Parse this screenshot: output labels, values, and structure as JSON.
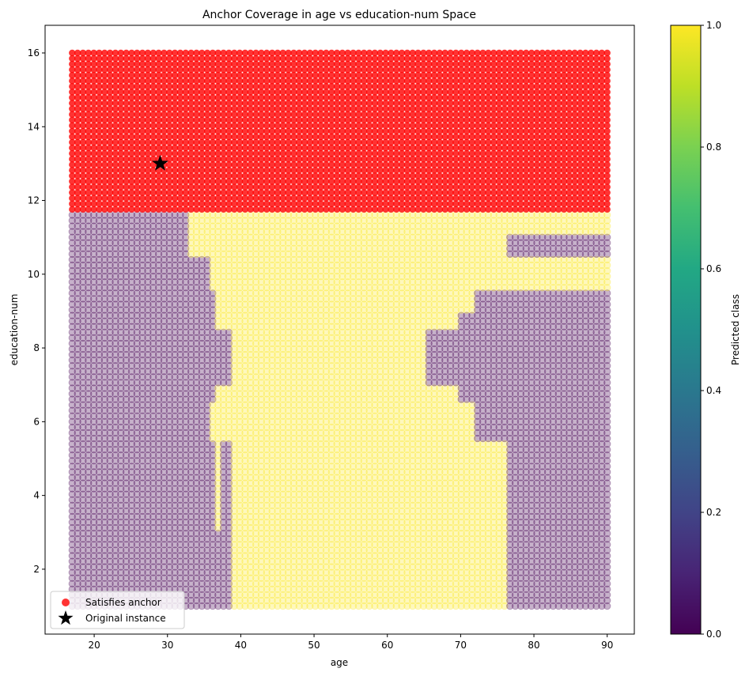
{
  "chart_data": {
    "type": "scatter",
    "title": "Anchor Coverage in age vs education-num Space",
    "xlabel": "age",
    "ylabel": "education-num",
    "xlim": [
      13.3,
      93.7
    ],
    "ylim": [
      0.24,
      16.75
    ],
    "xticks": [
      20,
      30,
      40,
      50,
      60,
      70,
      80,
      90
    ],
    "yticks": [
      2,
      4,
      6,
      8,
      10,
      12,
      14,
      16
    ],
    "grid": false,
    "grid_points": {
      "age_range": [
        17,
        90
      ],
      "education_range": [
        1,
        16
      ],
      "count_per_axis": 100
    },
    "predicted_class_0_regions": [
      {
        "age": [
          17,
          32.5
        ],
        "education": [
          1,
          11.7
        ]
      },
      {
        "age": [
          17,
          35.6
        ],
        "education": [
          1,
          10.5
        ]
      },
      {
        "age": [
          17,
          36.3
        ],
        "education": [
          6.5,
          9.6
        ]
      },
      {
        "age": [
          17,
          38.5
        ],
        "education": [
          7.0,
          8.55
        ]
      },
      {
        "age": [
          17,
          36.3
        ],
        "education": [
          1,
          5.5
        ]
      },
      {
        "age": [
          37.3,
          38.5
        ],
        "education": [
          1,
          5.5
        ]
      },
      {
        "age": [
          17,
          38.5
        ],
        "education": [
          1,
          3.1
        ]
      },
      {
        "age": [
          76.6,
          90
        ],
        "education": [
          1,
          5.5
        ]
      },
      {
        "age": [
          72.2,
          90
        ],
        "education": [
          5.5,
          9.6
        ]
      },
      {
        "age": [
          70.0,
          90
        ],
        "education": [
          6.5,
          9.0
        ]
      },
      {
        "age": [
          65.5,
          90
        ],
        "education": [
          7.0,
          8.55
        ]
      },
      {
        "age": [
          76.6,
          90
        ],
        "education": [
          10.45,
          11.1
        ]
      }
    ],
    "anchor": {
      "feature": "education-num",
      "min": 11.75
    },
    "original_instance": {
      "age": 29,
      "education-num": 13
    },
    "colors": {
      "class_0": "#440154",
      "class_1": "#fde725",
      "anchor": "#ff0000",
      "instance": "#000000"
    },
    "legend": {
      "position": "lower-left",
      "entries": [
        "Satisfies anchor",
        "Original instance"
      ]
    },
    "colorbar": {
      "label": "Predicted class",
      "range": [
        0,
        1
      ],
      "ticks": [
        "0.0",
        "0.2",
        "0.4",
        "0.6",
        "0.8",
        "1.0"
      ],
      "colormap": "viridis"
    }
  }
}
